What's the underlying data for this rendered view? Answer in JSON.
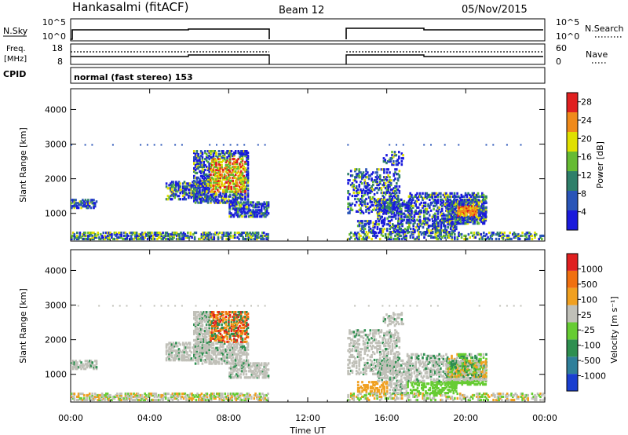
{
  "header": {
    "station": "Hankasalmi (fitACF)",
    "beam": "Beam 12",
    "date": "05/Nov/2015"
  },
  "nsky_panel": {
    "left_label": "N.Sky",
    "left_ticks": [
      "10^5",
      "10^0"
    ],
    "right_ticks": [
      "10^5",
      "10^0"
    ],
    "right_label": "N.Search"
  },
  "freq_panel": {
    "left_label_1": "Freq.",
    "left_label_2": "[MHz]",
    "left_ticks": [
      "18",
      "8"
    ],
    "right_ticks": [
      "60",
      "0"
    ],
    "right_label": "Nave"
  },
  "cpid_panel": {
    "left_label": "CPID",
    "text": "normal (fast stereo) 153"
  },
  "time_axis": {
    "labels": [
      "00:00",
      "04:00",
      "08:00",
      "12:00",
      "16:00",
      "20:00",
      "00:00"
    ],
    "title": "Time UT"
  },
  "chart_data": [
    {
      "type": "heatmap",
      "name": "power",
      "ylabel": "Slant Range [km]",
      "yticks": [
        "1000",
        "2000",
        "3000",
        "4000"
      ],
      "ylim": [
        200,
        4600
      ],
      "colorbar_label": "Power [dB]",
      "colorbar_ticks": [
        "4",
        "8",
        "12",
        "16",
        "20",
        "24",
        "28"
      ],
      "colors": [
        "#1a1adc",
        "#2a55b8",
        "#2f7f6a",
        "#66bb33",
        "#e0e000",
        "#f08a1a",
        "#e02020"
      ],
      "data_gap_hours": [
        10,
        14
      ]
    },
    {
      "type": "heatmap",
      "name": "velocity",
      "ylabel": "Slant Range [km]",
      "yticks": [
        "1000",
        "2000",
        "3000",
        "4000"
      ],
      "ylim": [
        200,
        4600
      ],
      "colorbar_label": "Velocity [m s⁻¹]",
      "colorbar_ticks": [
        "1000",
        "500",
        "100",
        "25",
        "-25",
        "-100",
        "-500",
        "-1000"
      ],
      "colors": [
        "#1a3fd0",
        "#2f7f9a",
        "#2e8f50",
        "#66cc33",
        "#c0c0b8",
        "#f0a020",
        "#f07010",
        "#e02020"
      ],
      "data_gap_hours": [
        10,
        14
      ]
    }
  ]
}
